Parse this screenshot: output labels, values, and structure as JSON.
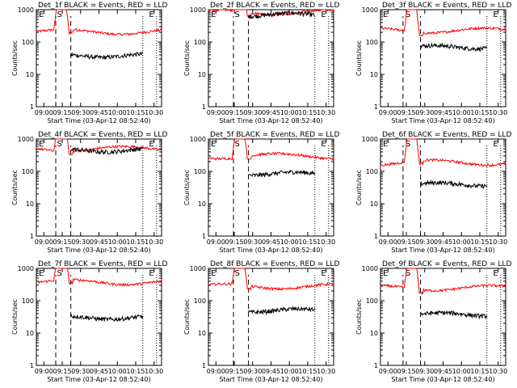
{
  "figure": {
    "legend_suffix": "BLACK = Events, RED = LLD",
    "ylabel": "Counts/sec",
    "xlabel": "Start Time (03-Apr-12 08:52:40)",
    "y_ticks": [
      "1",
      "10",
      "100",
      "1000"
    ],
    "marker_labels": {
      "S": "S",
      "E": "E"
    },
    "colors": {
      "events": "#000000",
      "lld": "#ff0000",
      "axes": "#000000"
    },
    "y_scale": "log"
  },
  "chart_data": [
    {
      "type": "line",
      "title": "Det_1f BLACK = Events, RED = LLD",
      "x_ticks": [
        "09:00",
        "09:15",
        "09:30",
        "09:45",
        "10:00",
        "10:15",
        "10:30"
      ],
      "ylim": [
        1,
        1000
      ],
      "lld_base": 210,
      "events_base": 38,
      "events_range": [
        0.275,
        0.85
      ],
      "peak_pos": 0.2,
      "dashed_markers": [
        0.155,
        0.275
      ],
      "dotted_markers": [
        0.85,
        0.96
      ],
      "marker_S": 0.185,
      "marker_E": 0.92,
      "series": [
        {
          "name": "Events",
          "color": "#000000"
        },
        {
          "name": "LLD",
          "color": "#ff0000"
        }
      ]
    },
    {
      "type": "line",
      "title": "Det_2f BLACK = Events, RED = LLD",
      "x_ticks": [
        "09:00",
        "09:15",
        "09:30",
        "09:45",
        "10:00",
        "10:15",
        "10:30"
      ],
      "ylim": [
        1,
        1000
      ],
      "lld_base": 850,
      "events_base": 700,
      "events_range": [
        0.32,
        0.85
      ],
      "peak_pos": 0.25,
      "dashed_markers": [
        0.2,
        0.32
      ],
      "dotted_markers": [
        0.85,
        0.96
      ],
      "marker_S": 0.23,
      "marker_E": 0.92,
      "series": [
        {
          "name": "Events",
          "color": "#000000"
        },
        {
          "name": "LLD",
          "color": "#ff0000"
        }
      ]
    },
    {
      "type": "line",
      "title": "Det_3f BLACK = Events, RED = LLD",
      "x_ticks": [
        "09:00",
        "09:15",
        "09:30",
        "09:45",
        "10:00",
        "10:15",
        "10:30"
      ],
      "ylim": [
        1,
        1000
      ],
      "lld_base": 230,
      "events_base": 70,
      "events_range": [
        0.32,
        0.85
      ],
      "peak_pos": 0.25,
      "dashed_markers": [
        0.18,
        0.32
      ],
      "dotted_markers": [
        0.85,
        0.96
      ],
      "marker_S": 0.22,
      "marker_E": 0.92,
      "series": [
        {
          "name": "Events",
          "color": "#000000"
        },
        {
          "name": "LLD",
          "color": "#ff0000"
        }
      ]
    },
    {
      "type": "line",
      "title": "Det_4f BLACK = Events, RED = LLD",
      "x_ticks": [
        "09:00",
        "09:15",
        "09:30",
        "09:45",
        "10:00",
        "10:15",
        "10:30"
      ],
      "ylim": [
        1,
        1000
      ],
      "lld_base": 500,
      "events_base": 450,
      "events_range": [
        0.275,
        0.85
      ],
      "peak_pos": 0.2,
      "dashed_markers": [
        0.155,
        0.275
      ],
      "dotted_markers": [
        0.85,
        0.96
      ],
      "marker_S": 0.185,
      "marker_E": 0.92,
      "series": [
        {
          "name": "Events",
          "color": "#000000"
        },
        {
          "name": "LLD",
          "color": "#ff0000"
        }
      ]
    },
    {
      "type": "line",
      "title": "Det_5f BLACK = Events, RED = LLD",
      "x_ticks": [
        "09:00",
        "09:15",
        "09:30",
        "09:45",
        "10:00",
        "10:15",
        "10:30"
      ],
      "ylim": [
        1,
        1000
      ],
      "lld_base": 300,
      "events_base": 85,
      "events_range": [
        0.32,
        0.85
      ],
      "peak_pos": 0.25,
      "dashed_markers": [
        0.2,
        0.32
      ],
      "dotted_markers": [
        0.85,
        0.96
      ],
      "marker_S": 0.23,
      "marker_E": 0.92,
      "series": [
        {
          "name": "Events",
          "color": "#000000"
        },
        {
          "name": "LLD",
          "color": "#ff0000"
        }
      ]
    },
    {
      "type": "line",
      "title": "Det_6f BLACK = Events, RED = LLD",
      "x_ticks": [
        "09:00",
        "09:15",
        "09:30",
        "09:45",
        "10:00",
        "10:15",
        "10:30"
      ],
      "ylim": [
        1,
        1000
      ],
      "lld_base": 190,
      "events_base": 40,
      "events_range": [
        0.32,
        0.85
      ],
      "peak_pos": 0.25,
      "dashed_markers": [
        0.18,
        0.32
      ],
      "dotted_markers": [
        0.85,
        0.96
      ],
      "marker_S": 0.22,
      "marker_E": 0.92,
      "series": [
        {
          "name": "Events",
          "color": "#000000"
        },
        {
          "name": "LLD",
          "color": "#ff0000"
        }
      ]
    },
    {
      "type": "line",
      "title": "Det_7f BLACK = Events, RED = LLD",
      "x_ticks": [
        "09:00",
        "09:15",
        "09:30",
        "09:45",
        "10:00",
        "10:15",
        "10:30"
      ],
      "ylim": [
        1,
        1000
      ],
      "lld_base": 380,
      "events_base": 30,
      "events_range": [
        0.275,
        0.85
      ],
      "peak_pos": 0.2,
      "dashed_markers": [
        0.155,
        0.275
      ],
      "dotted_markers": [
        0.85,
        0.96
      ],
      "marker_S": 0.185,
      "marker_E": 0.92,
      "series": [
        {
          "name": "Events",
          "color": "#000000"
        },
        {
          "name": "LLD",
          "color": "#ff0000"
        }
      ]
    },
    {
      "type": "line",
      "title": "Det_8f BLACK = Events, RED = LLD",
      "x_ticks": [
        "09:00",
        "09:15",
        "09:30",
        "09:45",
        "10:00",
        "10:15",
        "10:30"
      ],
      "ylim": [
        1,
        1000
      ],
      "lld_base": 280,
      "events_base": 50,
      "events_range": [
        0.32,
        0.85
      ],
      "peak_pos": 0.25,
      "dashed_markers": [
        0.2,
        0.32
      ],
      "dotted_markers": [
        0.85,
        0.96
      ],
      "marker_S": 0.23,
      "marker_E": 0.92,
      "series": [
        {
          "name": "Events",
          "color": "#000000"
        },
        {
          "name": "LLD",
          "color": "#ff0000"
        }
      ]
    },
    {
      "type": "line",
      "title": "Det_9f BLACK = Events, RED = LLD",
      "x_ticks": [
        "09:00",
        "09:15",
        "09:30",
        "09:45",
        "10:00",
        "10:15",
        "10:30"
      ],
      "ylim": [
        1,
        1000
      ],
      "lld_base": 250,
      "events_base": 38,
      "events_range": [
        0.32,
        0.85
      ],
      "peak_pos": 0.25,
      "dashed_markers": [
        0.18,
        0.32
      ],
      "dotted_markers": [
        0.85,
        0.96
      ],
      "marker_S": 0.22,
      "marker_E": 0.92,
      "series": [
        {
          "name": "Events",
          "color": "#000000"
        },
        {
          "name": "LLD",
          "color": "#ff0000"
        }
      ]
    }
  ]
}
